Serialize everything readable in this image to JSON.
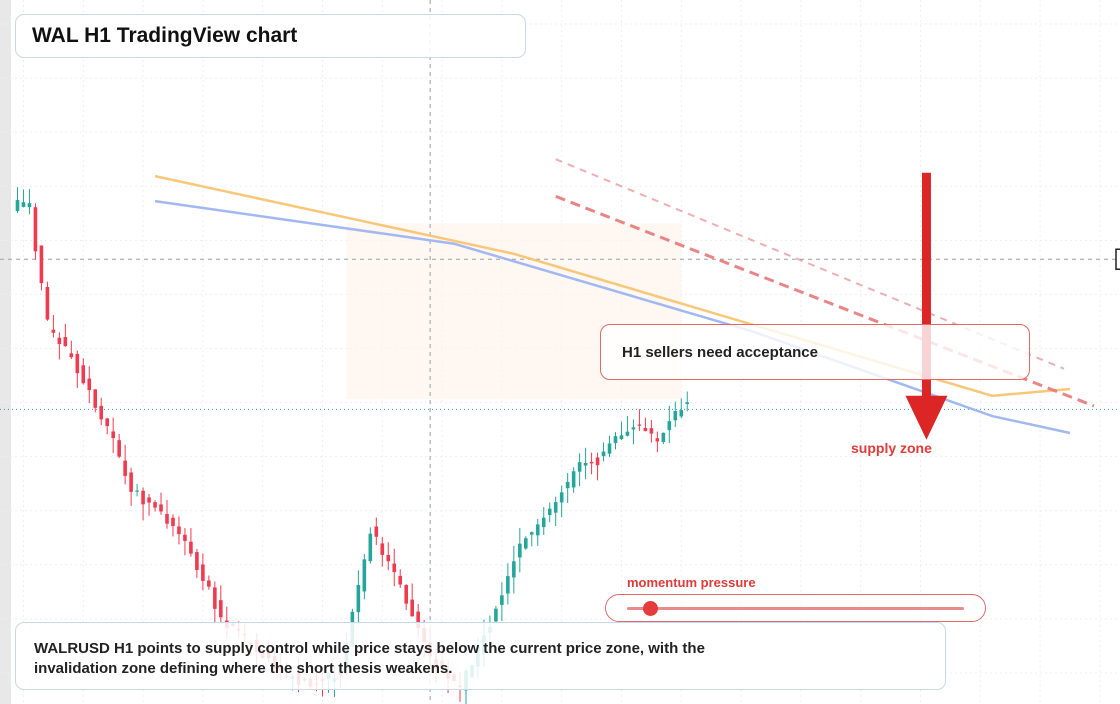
{
  "title": "WAL H1 TradingView chart",
  "caption": "WALRUSD H1 points to supply control while price stays below the current price zone, with the invalidation zone defining where the short thesis weakens.",
  "callout": "H1 sellers need acceptance",
  "zone_label": "supply zone",
  "momentum": {
    "label": "momentum pressure",
    "level": 0.07
  },
  "colors": {
    "up": "#26a69a",
    "down": "#ef3b4f",
    "ema_fast": "#f8c471",
    "ema_slow": "#9db4f0",
    "trend": "#e87878",
    "arrow": "#dc2626"
  },
  "chart_data": {
    "type": "candlestick",
    "timeframe": "H1",
    "symbol": "WALRUSD",
    "ylim": [
      0,
      100
    ],
    "bars": 113,
    "grid": true,
    "crosshair": {
      "bar": 69,
      "value": 65.2
    },
    "current_price_line": 43.0,
    "supply_zone": {
      "from_bar": 55,
      "to_bar": 111,
      "low": 44.5,
      "high": 70.5
    },
    "anchors": [
      [
        0,
        73.0
      ],
      [
        3,
        73.5
      ],
      [
        4,
        66.5
      ],
      [
        6,
        55.5
      ],
      [
        10,
        50.5
      ],
      [
        16,
        40.5
      ],
      [
        20,
        31.0
      ],
      [
        25,
        27.5
      ],
      [
        30,
        22.0
      ],
      [
        35,
        12.0
      ],
      [
        40,
        8.5
      ],
      [
        45,
        4.0
      ],
      [
        48,
        3.0
      ],
      [
        50,
        2.5
      ],
      [
        55,
        4.0
      ],
      [
        60,
        25.0
      ],
      [
        65,
        17.0
      ],
      [
        70,
        6.0
      ],
      [
        75,
        2.0
      ],
      [
        80,
        11.0
      ],
      [
        85,
        23.0
      ],
      [
        90,
        28.0
      ],
      [
        95,
        34.5
      ],
      [
        98,
        35.5
      ],
      [
        104,
        41.0
      ],
      [
        108,
        38.5
      ],
      [
        112,
        43.5
      ],
      [
        116,
        48.5
      ],
      [
        120,
        44.0
      ],
      [
        124,
        45.0
      ],
      [
        128,
        48.5
      ],
      [
        133,
        62.5
      ],
      [
        138,
        77.0
      ],
      [
        143,
        76.0
      ],
      [
        147,
        72.5
      ],
      [
        150,
        77.5
      ],
      [
        153,
        82.5
      ],
      [
        154,
        97.5
      ],
      [
        155,
        57.5
      ],
      [
        158,
        60.5
      ],
      [
        161,
        58.0
      ],
      [
        164,
        54.5
      ],
      [
        168,
        56.0
      ],
      [
        171,
        53.5
      ],
      [
        174,
        57.0
      ],
      [
        175,
        47.0
      ],
      [
        177,
        44.0
      ],
      [
        179,
        42.0
      ],
      [
        180,
        43.2
      ]
    ],
    "ema_fast": [
      [
        0,
        77.5
      ],
      [
        60,
        66.0
      ],
      [
        100,
        55.5
      ],
      [
        140,
        45.0
      ],
      [
        180,
        46.0
      ]
    ],
    "ema_slow": [
      [
        0,
        73.8
      ],
      [
        50,
        67.5
      ],
      [
        100,
        54.5
      ],
      [
        140,
        42.0
      ],
      [
        180,
        39.5
      ]
    ],
    "trendlines": [
      {
        "from": [
          90,
          80.0
        ],
        "to": [
          175,
          49.0
        ],
        "style": "dashed-light"
      },
      {
        "from": [
          90,
          74.5
        ],
        "to": [
          180,
          43.5
        ],
        "style": "dashed"
      }
    ],
    "projection": {
      "bar": 152,
      "from": 78.0,
      "to": 38.5,
      "direction": "down"
    }
  }
}
